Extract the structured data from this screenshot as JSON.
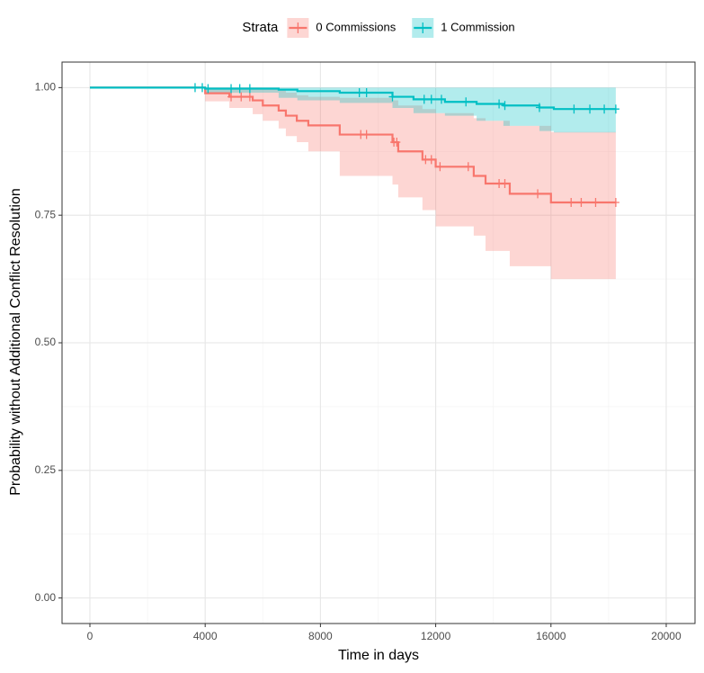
{
  "chart_data": {
    "type": "survival",
    "legend_title": "Strata",
    "legend_position": "top",
    "x_label": "Time in days",
    "y_label": "Probability without Additional Conflict Resolution",
    "xlim": [
      -967,
      20999
    ],
    "ylim": [
      -0.05,
      1.05
    ],
    "xticks": [
      0,
      4000,
      8000,
      12000,
      16000,
      20000
    ],
    "yticks": [
      {
        "value": 0,
        "label": "0.00"
      },
      {
        "value": 0.25,
        "label": "0.25"
      },
      {
        "value": 0.5,
        "label": "0.50"
      },
      {
        "value": 0.75,
        "label": "0.75"
      },
      {
        "value": 1,
        "label": "1.00"
      }
    ],
    "x_minor_ticks": [
      2000,
      6000,
      10000,
      14000,
      18000
    ],
    "y_minor_ticks": [
      0.125,
      0.375,
      0.625,
      0.875
    ],
    "grid": true,
    "series": [
      {
        "name": "0 Commissions",
        "color": "#F8766D",
        "x": [
          0,
          4000,
          4840,
          5650,
          6000,
          6550,
          6800,
          7180,
          7580,
          8670,
          10500,
          10700,
          11540,
          12000,
          13320,
          13730,
          14570,
          16000,
          18250
        ],
        "values": [
          1,
          0.989,
          0.982,
          0.975,
          0.965,
          0.955,
          0.945,
          0.935,
          0.926,
          0.908,
          0.893,
          0.875,
          0.859,
          0.845,
          0.827,
          0.812,
          0.792,
          0.775,
          0.775
        ],
        "lower": [
          1,
          0.973,
          0.96,
          0.948,
          0.935,
          0.92,
          0.905,
          0.893,
          0.875,
          0.827,
          0.81,
          0.785,
          0.76,
          0.728,
          0.71,
          0.68,
          0.65,
          0.625,
          0.625
        ],
        "upper": [
          1,
          1,
          1,
          1,
          0.998,
          0.995,
          0.99,
          0.985,
          0.982,
          0.98,
          0.975,
          0.965,
          0.958,
          0.95,
          0.94,
          0.935,
          0.925,
          0.913,
          0.913
        ],
        "censor_x": [
          4900,
          5250,
          5550,
          9400,
          9600,
          10550,
          10650,
          11650,
          11850,
          12150,
          13130,
          14200,
          14400,
          15540,
          16700,
          17050,
          17550,
          18250
        ],
        "censor_values": [
          0.982,
          0.982,
          0.982,
          0.908,
          0.908,
          0.893,
          0.893,
          0.859,
          0.859,
          0.845,
          0.845,
          0.812,
          0.812,
          0.792,
          0.775,
          0.775,
          0.775,
          0.775
        ]
      },
      {
        "name": "1 Commission",
        "color": "#00BFC4",
        "x": [
          0,
          4000,
          6550,
          7200,
          8670,
          10500,
          11230,
          12320,
          13420,
          14350,
          15600,
          16100,
          18250
        ],
        "values": [
          1,
          0.998,
          0.996,
          0.993,
          0.99,
          0.982,
          0.977,
          0.972,
          0.968,
          0.965,
          0.961,
          0.958,
          0.958
        ],
        "lower": [
          1,
          0.99,
          0.98,
          0.975,
          0.97,
          0.96,
          0.95,
          0.945,
          0.935,
          0.925,
          0.915,
          0.912,
          0.912
        ],
        "upper": [
          1,
          1,
          1,
          1,
          1,
          1,
          1,
          1,
          1,
          1,
          1,
          1,
          1
        ],
        "censor_x": [
          3650,
          3900,
          4100,
          4900,
          5200,
          5550,
          9350,
          9600,
          10500,
          11600,
          11850,
          12200,
          13050,
          14200,
          14400,
          15600,
          16800,
          17350,
          17850,
          18250
        ],
        "censor_values": [
          1,
          1,
          0.998,
          0.998,
          0.998,
          0.998,
          0.99,
          0.99,
          0.982,
          0.977,
          0.977,
          0.977,
          0.972,
          0.968,
          0.965,
          0.961,
          0.958,
          0.958,
          0.958,
          0.958
        ]
      }
    ]
  }
}
